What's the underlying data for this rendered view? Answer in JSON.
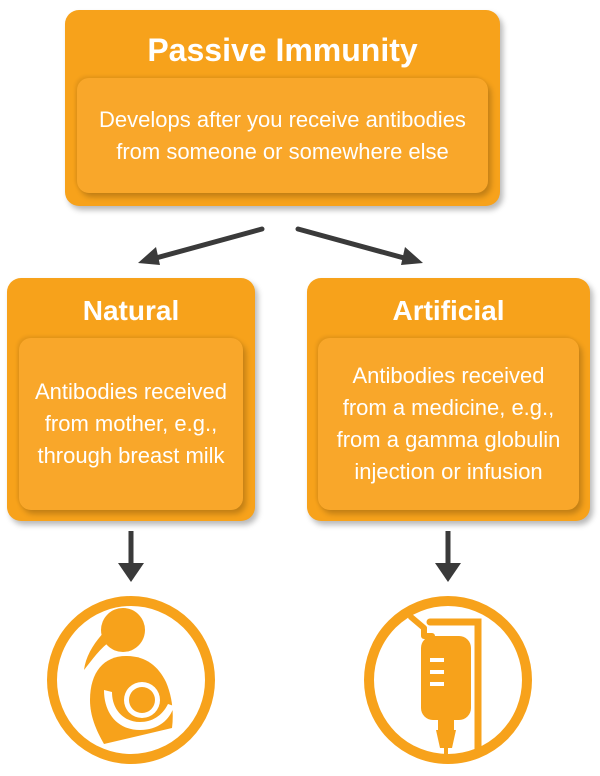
{
  "top": {
    "title": "Passive Immunity",
    "description": "Develops after you receive antibodies from someone or somewhere else"
  },
  "natural": {
    "title": "Natural",
    "description": "Antibodies received from mother, e.g., through breast milk"
  },
  "artificial": {
    "title": "Artificial",
    "description": "Antibodies received from a medicine, e.g., from a gamma globulin injection or infusion"
  },
  "icons": {
    "natural": "breastfeeding-mother-icon",
    "artificial": "iv-infusion-bag-icon"
  },
  "colors": {
    "box": "#f7a21b",
    "inner": "#f9a72a",
    "text": "#ffffff",
    "arrow": "#3a3a3a",
    "icon": "#f7a21b"
  }
}
